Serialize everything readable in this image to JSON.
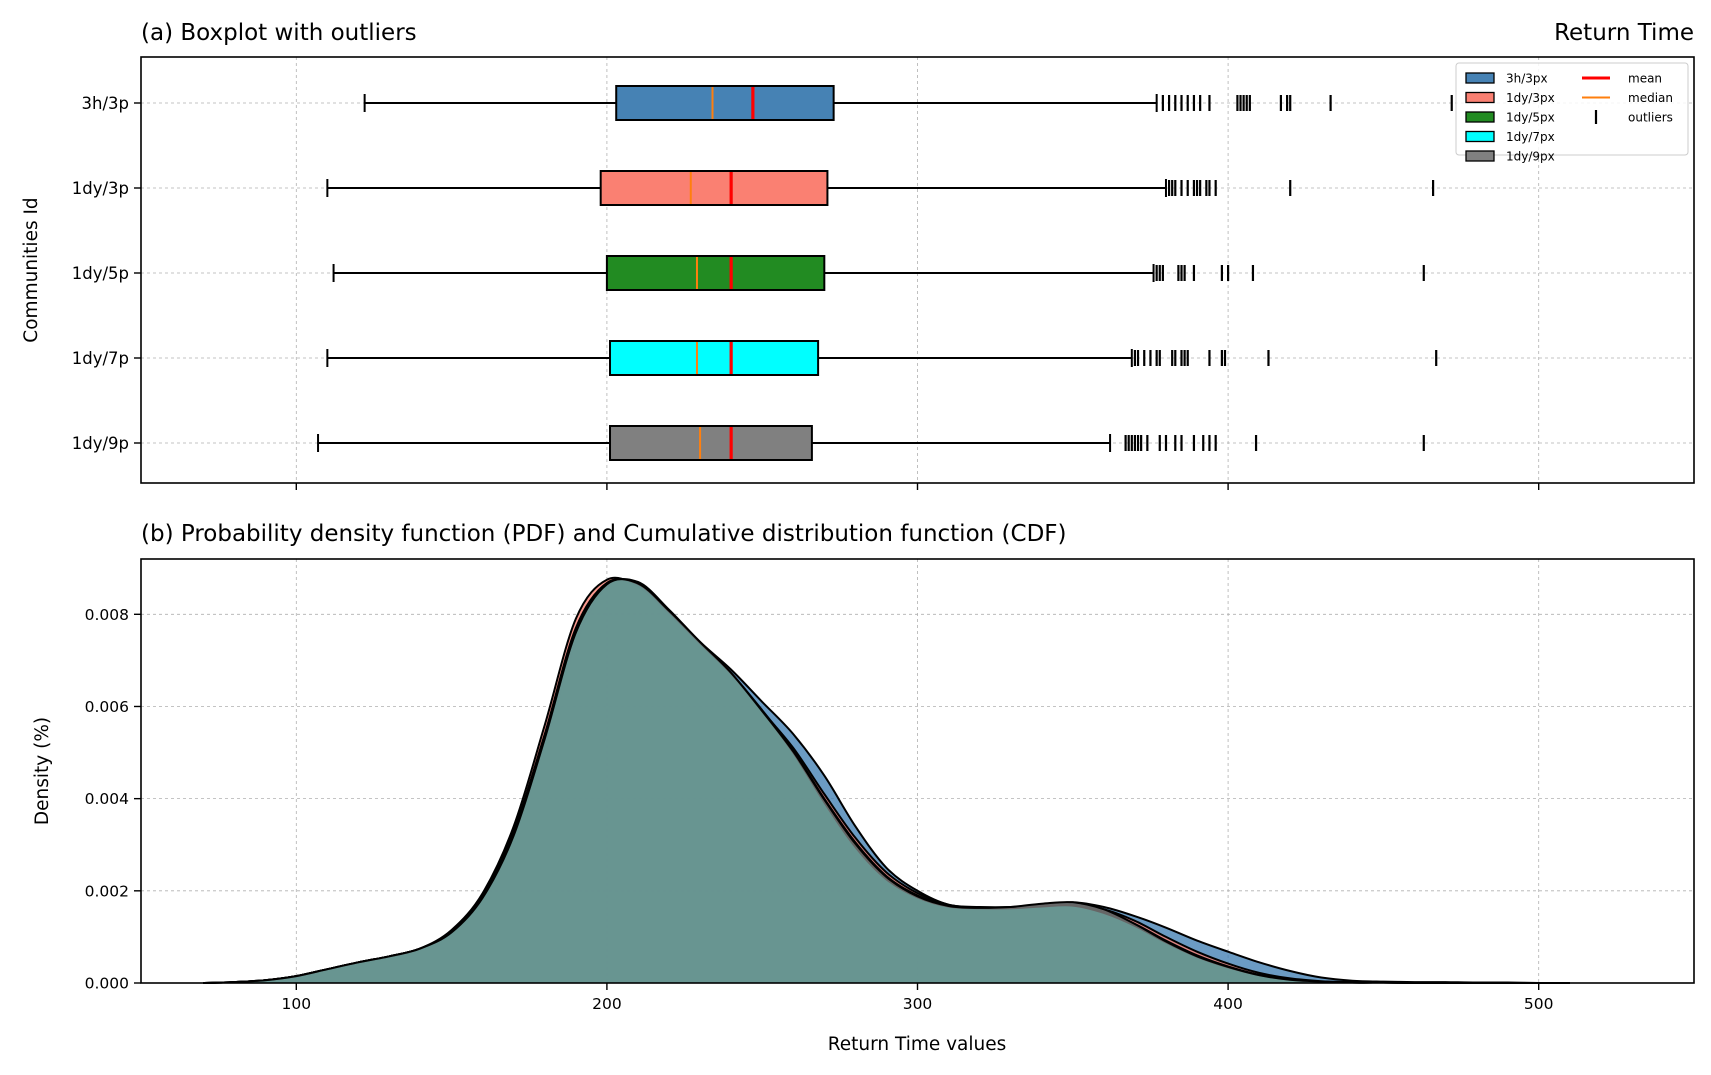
{
  "figure": {
    "title_right": "Return Time"
  },
  "chart_data": [
    {
      "type": "boxplot",
      "title": "(a) Boxplot with outliers",
      "ylabel": "Communities Id",
      "xlim": [
        50,
        550
      ],
      "xticks": [
        100,
        200,
        300,
        400,
        500
      ],
      "grid": true,
      "legend_position": "top-right",
      "categories": [
        "3h/3p",
        "1dy/3p",
        "1dy/5p",
        "1dy/7p",
        "1dy/9p"
      ],
      "series": [
        {
          "name": "3h/3px",
          "color": "#4682b4",
          "whisker_low": 122,
          "q1": 203,
          "median": 234,
          "mean": 247,
          "q3": 273,
          "whisker_high": 377,
          "outliers": [
            379,
            381,
            383,
            385,
            387,
            389,
            391,
            394,
            403,
            404,
            405,
            406,
            407,
            417,
            419,
            420,
            433,
            472
          ]
        },
        {
          "name": "1dy/3px",
          "color": "#fa8072",
          "whisker_low": 110,
          "q1": 198,
          "median": 227,
          "mean": 240,
          "q3": 271,
          "whisker_high": 380,
          "outliers": [
            381,
            382,
            383,
            385,
            387,
            389,
            390,
            391,
            393,
            394,
            396,
            420,
            466
          ]
        },
        {
          "name": "1dy/5px",
          "color": "#228b22",
          "whisker_low": 112,
          "q1": 200,
          "median": 229,
          "mean": 240,
          "q3": 270,
          "whisker_high": 376,
          "outliers": [
            377,
            378,
            379,
            384,
            385,
            386,
            389,
            398,
            400,
            408,
            463
          ]
        },
        {
          "name": "1dy/7px",
          "color": "#00ffff",
          "whisker_low": 110,
          "q1": 201,
          "median": 229,
          "mean": 240,
          "q3": 268,
          "whisker_high": 369,
          "outliers": [
            370,
            371,
            373,
            375,
            377,
            378,
            382,
            383,
            385,
            386,
            387,
            394,
            398,
            399,
            413,
            467
          ]
        },
        {
          "name": "1dy/9px",
          "color": "#808080",
          "whisker_low": 107,
          "q1": 201,
          "median": 230,
          "mean": 240,
          "q3": 266,
          "whisker_high": 362,
          "outliers": [
            367,
            368,
            369,
            370,
            371,
            372,
            374,
            378,
            380,
            383,
            385,
            389,
            392,
            394,
            396,
            409,
            463
          ]
        }
      ],
      "legend": [
        {
          "label": "3h/3px",
          "kind": "box",
          "color": "#4682b4"
        },
        {
          "label": "1dy/3px",
          "kind": "box",
          "color": "#fa8072"
        },
        {
          "label": "1dy/5px",
          "kind": "box",
          "color": "#228b22"
        },
        {
          "label": "1dy/7px",
          "kind": "box",
          "color": "#00ffff"
        },
        {
          "label": "1dy/9px",
          "kind": "box",
          "color": "#808080"
        },
        {
          "label": "mean",
          "kind": "line",
          "color": "#ff0000"
        },
        {
          "label": "median",
          "kind": "line",
          "color": "#ff7f0e"
        },
        {
          "label": "outliers",
          "kind": "tick",
          "color": "#000000"
        }
      ]
    },
    {
      "type": "area",
      "title": "(b) Probability density function (PDF) and Cumulative distribution function (CDF)",
      "xlabel": "Return Time values",
      "ylabel": "Density (%)",
      "xlim": [
        50,
        550
      ],
      "ylim": [
        0,
        0.0092
      ],
      "xticks": [
        100,
        200,
        300,
        400,
        500
      ],
      "yticks": [
        "0.000",
        "0.002",
        "0.004",
        "0.006",
        "0.008"
      ],
      "grid": true,
      "x": [
        70,
        80,
        90,
        100,
        110,
        120,
        130,
        140,
        150,
        160,
        170,
        180,
        190,
        200,
        210,
        220,
        230,
        240,
        250,
        260,
        270,
        280,
        290,
        300,
        310,
        320,
        330,
        340,
        350,
        360,
        370,
        380,
        390,
        400,
        410,
        420,
        430,
        440,
        450,
        460,
        470,
        480,
        490,
        500,
        510
      ],
      "series": [
        {
          "color": "#4682b4",
          "values": [
            0.0,
            2e-05,
            6e-05,
            0.00015,
            0.0003,
            0.00045,
            0.00058,
            0.00075,
            0.0011,
            0.00185,
            0.0032,
            0.0052,
            0.0074,
            0.0086,
            0.0087,
            0.0081,
            0.0074,
            0.0068,
            0.0061,
            0.0054,
            0.0045,
            0.0034,
            0.0025,
            0.002,
            0.0017,
            0.00165,
            0.00165,
            0.0017,
            0.00175,
            0.00165,
            0.00145,
            0.0012,
            0.00092,
            0.00068,
            0.00045,
            0.00026,
            0.00012,
            5e-05,
            3e-05,
            2e-05,
            2e-05,
            1e-05,
            1e-05,
            0.0,
            0.0
          ]
        },
        {
          "color": "#fa8072",
          "values": [
            0.0,
            2e-05,
            6e-05,
            0.00015,
            0.0003,
            0.00045,
            0.00058,
            0.00075,
            0.00115,
            0.00195,
            0.0034,
            0.0056,
            0.0079,
            0.00875,
            0.0086,
            0.008,
            0.00735,
            0.0067,
            0.0059,
            0.0051,
            0.0041,
            0.00315,
            0.0024,
            0.00195,
            0.0017,
            0.00163,
            0.00162,
            0.00166,
            0.0017,
            0.0016,
            0.00135,
            0.001,
            0.00068,
            0.00042,
            0.00022,
            0.0001,
            4e-05,
            2e-05,
            1e-05,
            1e-05,
            1e-05,
            0.0,
            0.0,
            0.0,
            0.0
          ]
        },
        {
          "color": "#228b22",
          "values": [
            0.0,
            2e-05,
            6e-05,
            0.00015,
            0.0003,
            0.00045,
            0.00058,
            0.00075,
            0.00112,
            0.0019,
            0.0033,
            0.0054,
            0.0077,
            0.00868,
            0.00865,
            0.00805,
            0.00738,
            0.00672,
            0.00592,
            0.00505,
            0.004,
            0.00305,
            0.00232,
            0.0019,
            0.00168,
            0.00163,
            0.00162,
            0.00166,
            0.00168,
            0.00155,
            0.00128,
            0.00092,
            0.0006,
            0.00036,
            0.00018,
            8e-05,
            3e-05,
            1e-05,
            1e-05,
            0.0,
            0.0,
            0.0,
            0.0,
            0.0,
            0.0
          ]
        },
        {
          "color": "#00ffff",
          "values": [
            0.0,
            2e-05,
            6e-05,
            0.00015,
            0.0003,
            0.00045,
            0.00058,
            0.00075,
            0.00112,
            0.00188,
            0.00325,
            0.00535,
            0.00765,
            0.00866,
            0.00866,
            0.00806,
            0.00738,
            0.00672,
            0.0059,
            0.005,
            0.00392,
            0.00295,
            0.00225,
            0.00186,
            0.00166,
            0.00162,
            0.00162,
            0.00166,
            0.00168,
            0.00152,
            0.00124,
            0.00088,
            0.00057,
            0.00034,
            0.00017,
            7e-05,
            3e-05,
            1e-05,
            1e-05,
            0.0,
            0.0,
            0.0,
            0.0,
            0.0,
            0.0
          ]
        },
        {
          "color": "#808080",
          "values": [
            0.0,
            2e-05,
            6e-05,
            0.00015,
            0.0003,
            0.00045,
            0.00058,
            0.00075,
            0.0011,
            0.00185,
            0.0032,
            0.0053,
            0.0076,
            0.00865,
            0.00867,
            0.00808,
            0.0074,
            0.00673,
            0.0059,
            0.00502,
            0.00398,
            0.00302,
            0.0023,
            0.00188,
            0.00167,
            0.00163,
            0.00165,
            0.00172,
            0.00175,
            0.0016,
            0.00128,
            0.0009,
            0.00058,
            0.00035,
            0.00017,
            7e-05,
            3e-05,
            1e-05,
            1e-05,
            0.0,
            0.0,
            0.0,
            0.0,
            0.0,
            0.0
          ]
        }
      ]
    }
  ]
}
